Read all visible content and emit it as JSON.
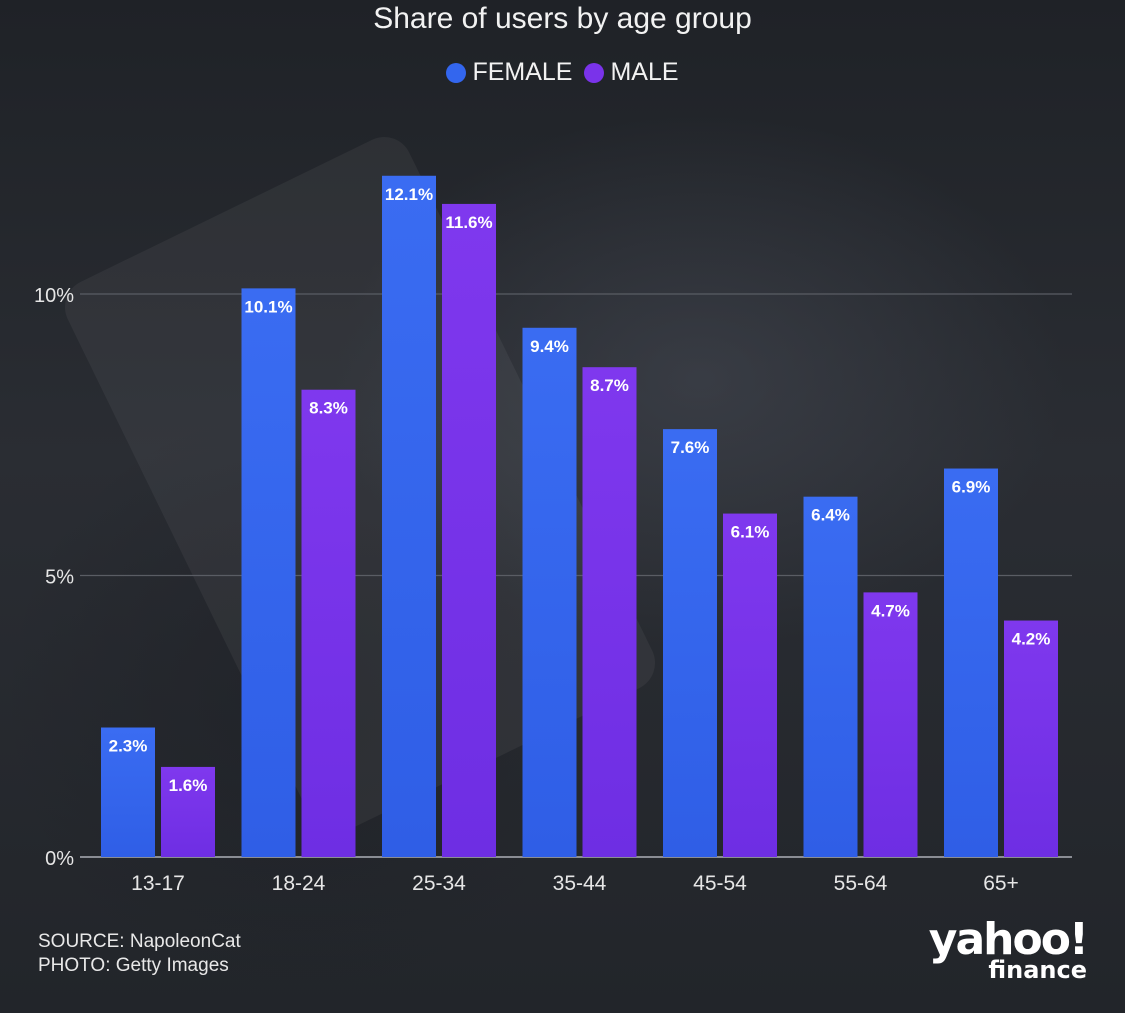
{
  "header": {
    "title": "Share of users by age group"
  },
  "legend": {
    "items": [
      {
        "label": "FEMALE",
        "color": "#3366ee"
      },
      {
        "label": "MALE",
        "color": "#7a33ea"
      }
    ]
  },
  "footer": {
    "source": "SOURCE: NapoleonCat",
    "photo": "PHOTO: Getty Images"
  },
  "logo": {
    "brand": "yahoo!",
    "sub": "finance"
  },
  "chart_data": {
    "type": "bar",
    "title": "Share of users by age group",
    "xlabel": "",
    "ylabel": "",
    "categories": [
      "13-17",
      "18-24",
      "25-34",
      "35-44",
      "45-54",
      "55-64",
      "65+"
    ],
    "series": [
      {
        "name": "FEMALE",
        "color": "#3366ee",
        "values": [
          2.3,
          10.1,
          12.1,
          9.4,
          7.6,
          6.4,
          6.9
        ],
        "labels": [
          "2.3%",
          "10.1%",
          "12.1%",
          "9.4%",
          "7.6%",
          "6.4%",
          "6.9%"
        ]
      },
      {
        "name": "MALE",
        "color": "#7a33ea",
        "values": [
          1.6,
          8.3,
          11.6,
          8.7,
          6.1,
          4.7,
          4.2
        ],
        "labels": [
          "1.6%",
          "8.3%",
          "11.6%",
          "8.7%",
          "6.1%",
          "4.7%",
          "4.2%"
        ]
      }
    ],
    "ylim": [
      0,
      12.1
    ],
    "yticks": [
      0,
      5,
      10
    ],
    "ytick_labels": [
      "0%",
      "5%",
      "10%"
    ],
    "grid": true,
    "legend_position": "top-center"
  }
}
